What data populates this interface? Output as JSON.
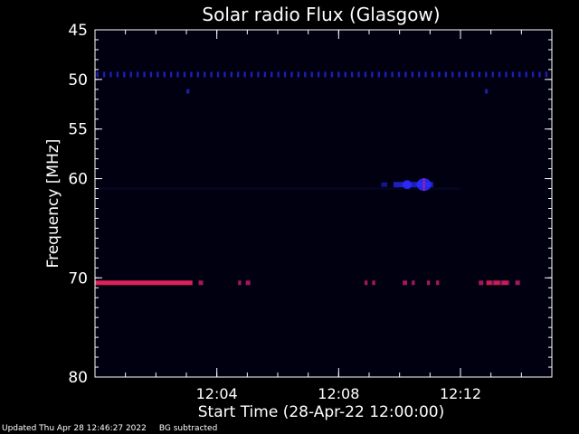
{
  "chart_data": {
    "type": "heatmap",
    "title": "Solar radio Flux (Glasgow)",
    "xlabel": "Start Time (28-Apr-22 12:00:00)",
    "ylabel": "Frequency [MHz]",
    "x_range_minutes": [
      0,
      15
    ],
    "xticks": [
      {
        "minute": 4,
        "label": "12:04"
      },
      {
        "minute": 8,
        "label": "12:08"
      },
      {
        "minute": 12,
        "label": "12:12"
      }
    ],
    "ylim": [
      45,
      80
    ],
    "y_reversed": true,
    "yticks": [
      {
        "value": 45,
        "label": "45"
      },
      {
        "value": 50,
        "label": "50"
      },
      {
        "value": 55,
        "label": "55"
      },
      {
        "value": 60,
        "label": "60"
      },
      {
        "value": 70,
        "label": "70"
      },
      {
        "value": 80,
        "label": "80"
      }
    ],
    "background_color": "#000010",
    "emissions": [
      {
        "f_mhz": 49.5,
        "t_start_min": 0.0,
        "t_end_min": 15.0,
        "pattern": "dotted",
        "spacing_min": 0.22,
        "color": "#2a2aff",
        "intensity": 0.7
      },
      {
        "f_mhz": 51.2,
        "t_start_min": 3.0,
        "t_end_min": 3.1,
        "pattern": "solid",
        "color": "#3030ff",
        "intensity": 0.6
      },
      {
        "f_mhz": 51.2,
        "t_start_min": 12.8,
        "t_end_min": 12.9,
        "pattern": "solid",
        "color": "#3030ff",
        "intensity": 0.6
      },
      {
        "f_mhz": 61.0,
        "t_start_min": 0.0,
        "t_end_min": 12.0,
        "pattern": "faint",
        "color": "#141450",
        "intensity": 0.25
      },
      {
        "f_mhz": 60.6,
        "t_start_min": 9.4,
        "t_end_min": 9.6,
        "pattern": "solid",
        "color": "#2222dd",
        "intensity": 0.6
      },
      {
        "f_mhz": 60.6,
        "t_start_min": 9.8,
        "t_end_min": 11.1,
        "pattern": "burst",
        "color": "#2a2aff",
        "intensity": 0.9
      },
      {
        "f_mhz": 70.5,
        "t_start_min": 0.0,
        "t_end_min": 3.2,
        "pattern": "solid",
        "color": "#e0205a",
        "intensity": 1.0
      },
      {
        "f_mhz": 70.5,
        "t_start_min": 3.4,
        "t_end_min": 3.55,
        "pattern": "solid",
        "color": "#d01a70",
        "intensity": 0.8
      },
      {
        "f_mhz": 70.5,
        "t_start_min": 4.7,
        "t_end_min": 4.8,
        "pattern": "solid",
        "color": "#d01a70",
        "intensity": 0.8
      },
      {
        "f_mhz": 70.5,
        "t_start_min": 4.95,
        "t_end_min": 5.1,
        "pattern": "solid",
        "color": "#d01a70",
        "intensity": 0.8
      },
      {
        "f_mhz": 70.5,
        "t_start_min": 8.85,
        "t_end_min": 8.95,
        "pattern": "solid",
        "color": "#d01a70",
        "intensity": 0.8
      },
      {
        "f_mhz": 70.5,
        "t_start_min": 9.1,
        "t_end_min": 9.2,
        "pattern": "solid",
        "color": "#d01a70",
        "intensity": 0.8
      },
      {
        "f_mhz": 70.5,
        "t_start_min": 10.1,
        "t_end_min": 10.25,
        "pattern": "solid",
        "color": "#d01a70",
        "intensity": 0.8
      },
      {
        "f_mhz": 70.5,
        "t_start_min": 10.4,
        "t_end_min": 10.5,
        "pattern": "solid",
        "color": "#d01a70",
        "intensity": 0.8
      },
      {
        "f_mhz": 70.5,
        "t_start_min": 10.9,
        "t_end_min": 11.0,
        "pattern": "solid",
        "color": "#d01a70",
        "intensity": 0.8
      },
      {
        "f_mhz": 70.5,
        "t_start_min": 11.2,
        "t_end_min": 11.3,
        "pattern": "solid",
        "color": "#d01a70",
        "intensity": 0.8
      },
      {
        "f_mhz": 70.5,
        "t_start_min": 12.6,
        "t_end_min": 12.75,
        "pattern": "solid",
        "color": "#d01a70",
        "intensity": 0.8
      },
      {
        "f_mhz": 70.5,
        "t_start_min": 12.85,
        "t_end_min": 13.6,
        "pattern": "dashed",
        "color": "#e0205a",
        "intensity": 0.9
      },
      {
        "f_mhz": 70.5,
        "t_start_min": 13.8,
        "t_end_min": 13.95,
        "pattern": "solid",
        "color": "#d01a70",
        "intensity": 0.8
      }
    ]
  },
  "footer": {
    "updated": "Updated Thu Apr 28 12:46:27 2022",
    "note": "BG subtracted"
  }
}
